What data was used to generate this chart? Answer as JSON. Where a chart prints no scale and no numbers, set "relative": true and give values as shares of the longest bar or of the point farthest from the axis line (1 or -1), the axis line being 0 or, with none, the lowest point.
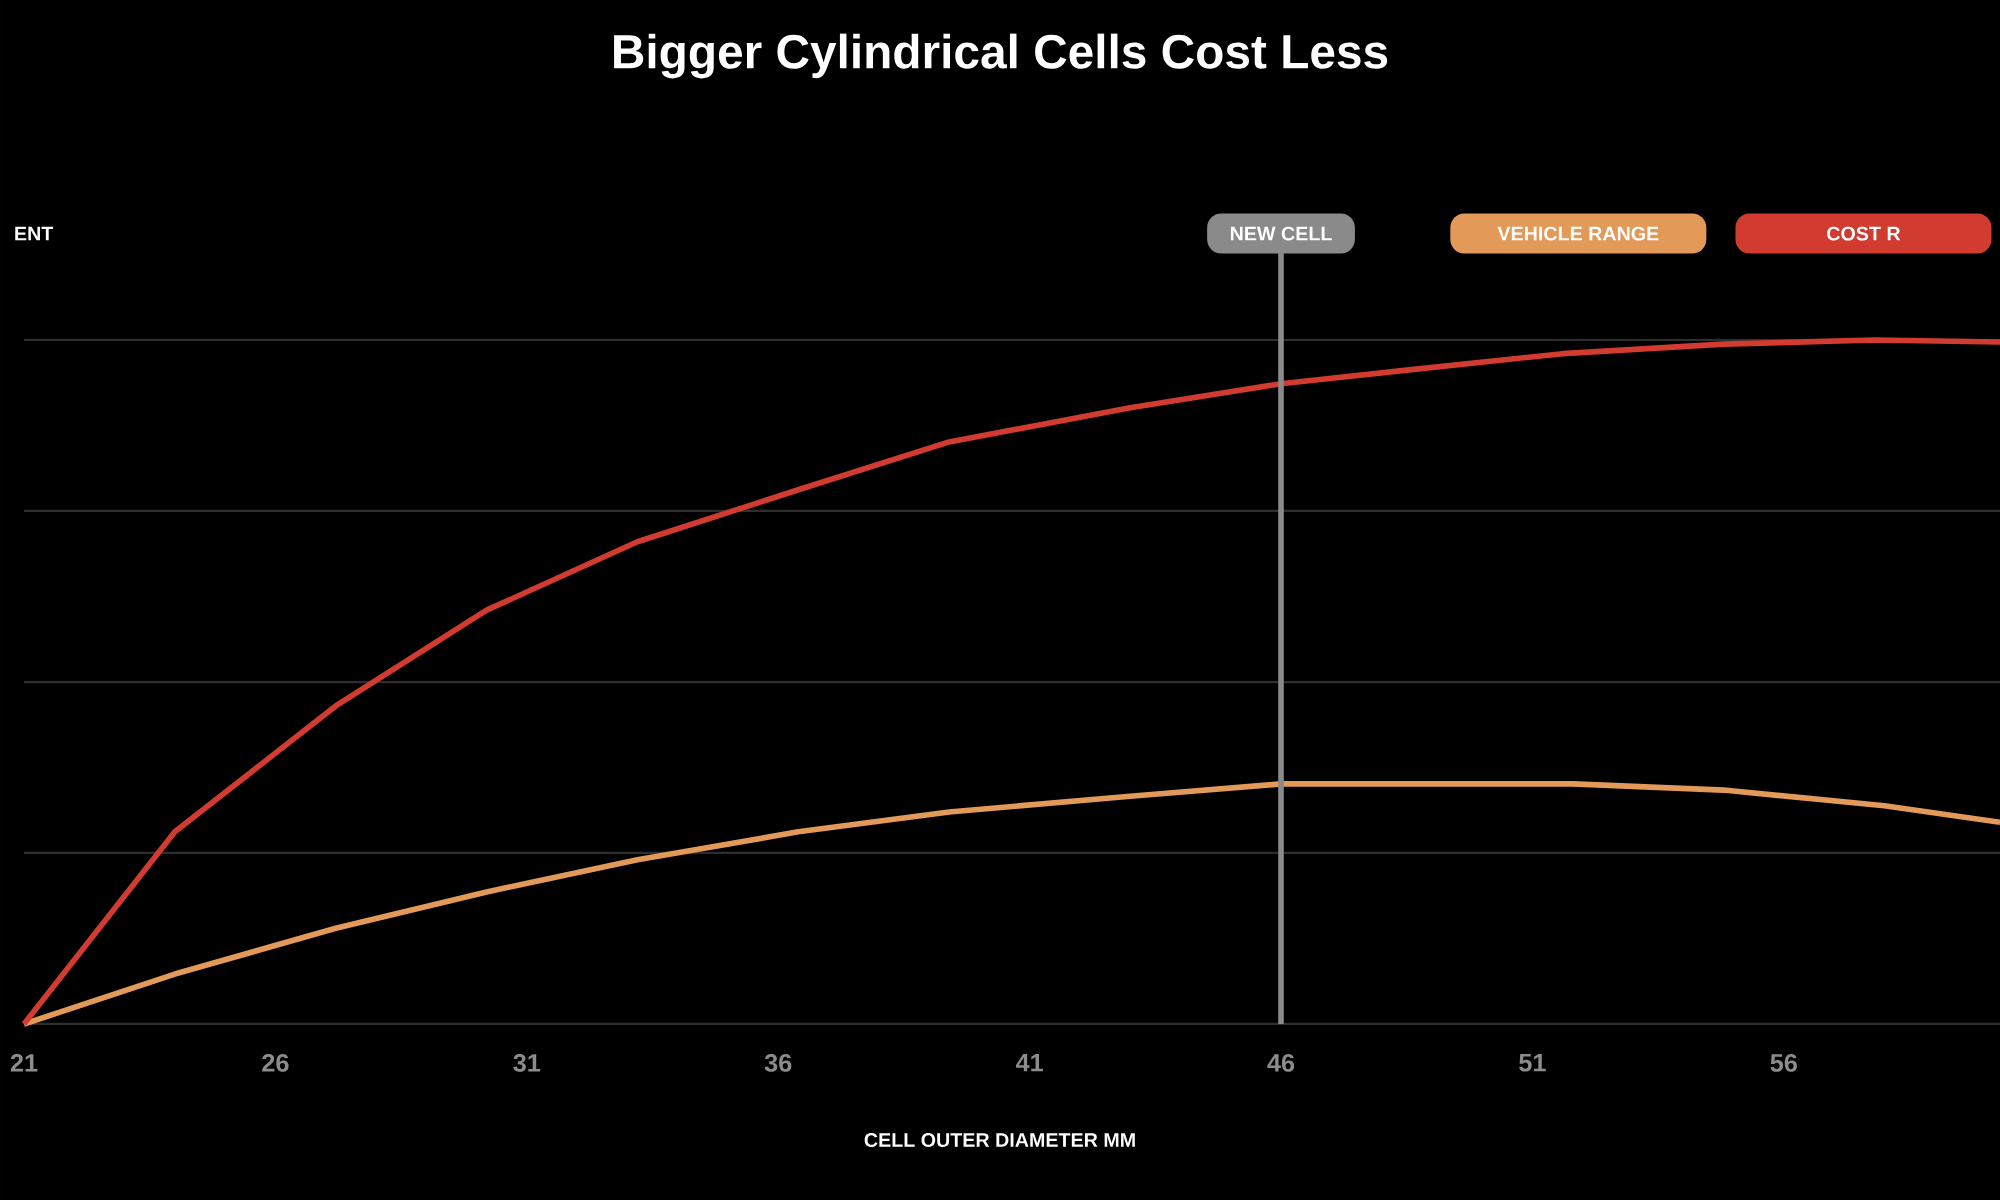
{
  "chart_data": {
    "type": "line",
    "title": "Bigger Cylindrical Cells Cost Less",
    "xlabel": "CELL OUTER DIAMETER  MM",
    "annotations": [
      "ENT"
    ],
    "relative": true,
    "xlim": [
      21,
      60.3
    ],
    "xticks": [
      21,
      26,
      31,
      36,
      41,
      46,
      51,
      56
    ],
    "grid": "y",
    "legend": "top right",
    "ref_lines": [
      {
        "axis": "x",
        "value": 46,
        "label": "NEW CELL",
        "color": "#8a8a8a"
      }
    ],
    "series": [
      {
        "name": "VEHICLE RANGE",
        "color": "#e39a58",
        "x": [
          21,
          24.0,
          27.2,
          30.2,
          33.2,
          36.4,
          39.4,
          43.0,
          46,
          48.9,
          51.8,
          54.8,
          58.0,
          60.3
        ],
        "values": [
          0,
          0.073,
          0.14,
          0.193,
          0.24,
          0.281,
          0.31,
          0.333,
          0.351,
          0.351,
          0.351,
          0.342,
          0.319,
          0.295
        ]
      },
      {
        "name": "COST R",
        "color": "#d23b30",
        "x": [
          21,
          24.0,
          27.2,
          30.2,
          33.2,
          36.4,
          39.4,
          43.0,
          46,
          48.5,
          51.6,
          54.8,
          57.8,
          60.3
        ],
        "values": [
          0,
          0.281,
          0.465,
          0.605,
          0.705,
          0.781,
          0.851,
          0.901,
          0.936,
          0.956,
          0.98,
          0.994,
          1.0,
          0.997
        ]
      }
    ]
  }
}
